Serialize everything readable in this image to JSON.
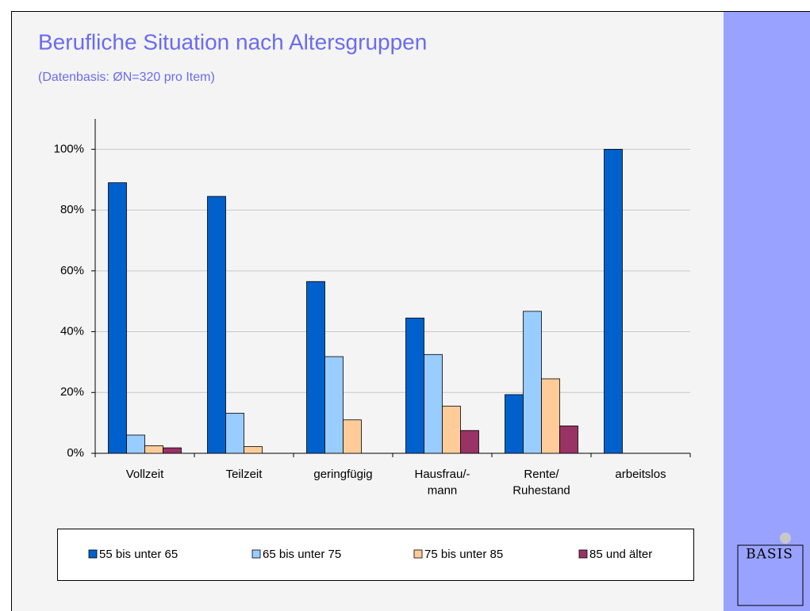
{
  "chart_data": {
    "type": "bar",
    "title": "Berufliche Situation nach Altersgruppen",
    "subtitle": "(Datenbasis: ØN=320 pro Item)",
    "categories": [
      "Vollzeit",
      "Teilzeit",
      "geringfügig",
      "Hausfrau/-\nmann",
      "Rente/\nRuhestand",
      "arbeitslos"
    ],
    "series": [
      {
        "name": "55 bis unter 65",
        "color": "#0060cc",
        "values": [
          89,
          84.5,
          56.5,
          44.5,
          19.3,
          100
        ]
      },
      {
        "name": "65 bis unter 75",
        "color": "#99ccff",
        "values": [
          6,
          13.2,
          31.8,
          32.5,
          46.7,
          null
        ]
      },
      {
        "name": "75 bis unter 85",
        "color": "#ffcc99",
        "values": [
          2.5,
          2.2,
          11,
          15.5,
          24.5,
          null
        ]
      },
      {
        "name": "85 und älter",
        "color": "#993366",
        "values": [
          1.8,
          null,
          null,
          7.5,
          9,
          null
        ]
      }
    ],
    "ylim": [
      0,
      110
    ],
    "yticks": [
      {
        "value": 0,
        "label": "0%"
      },
      {
        "value": 20,
        "label": "20%"
      },
      {
        "value": 40,
        "label": "40%"
      },
      {
        "value": 60,
        "label": "60%"
      },
      {
        "value": 80,
        "label": "80%"
      },
      {
        "value": 100,
        "label": "100%"
      }
    ],
    "grid": true,
    "legend": "bottom",
    "logo": "BASIS"
  }
}
